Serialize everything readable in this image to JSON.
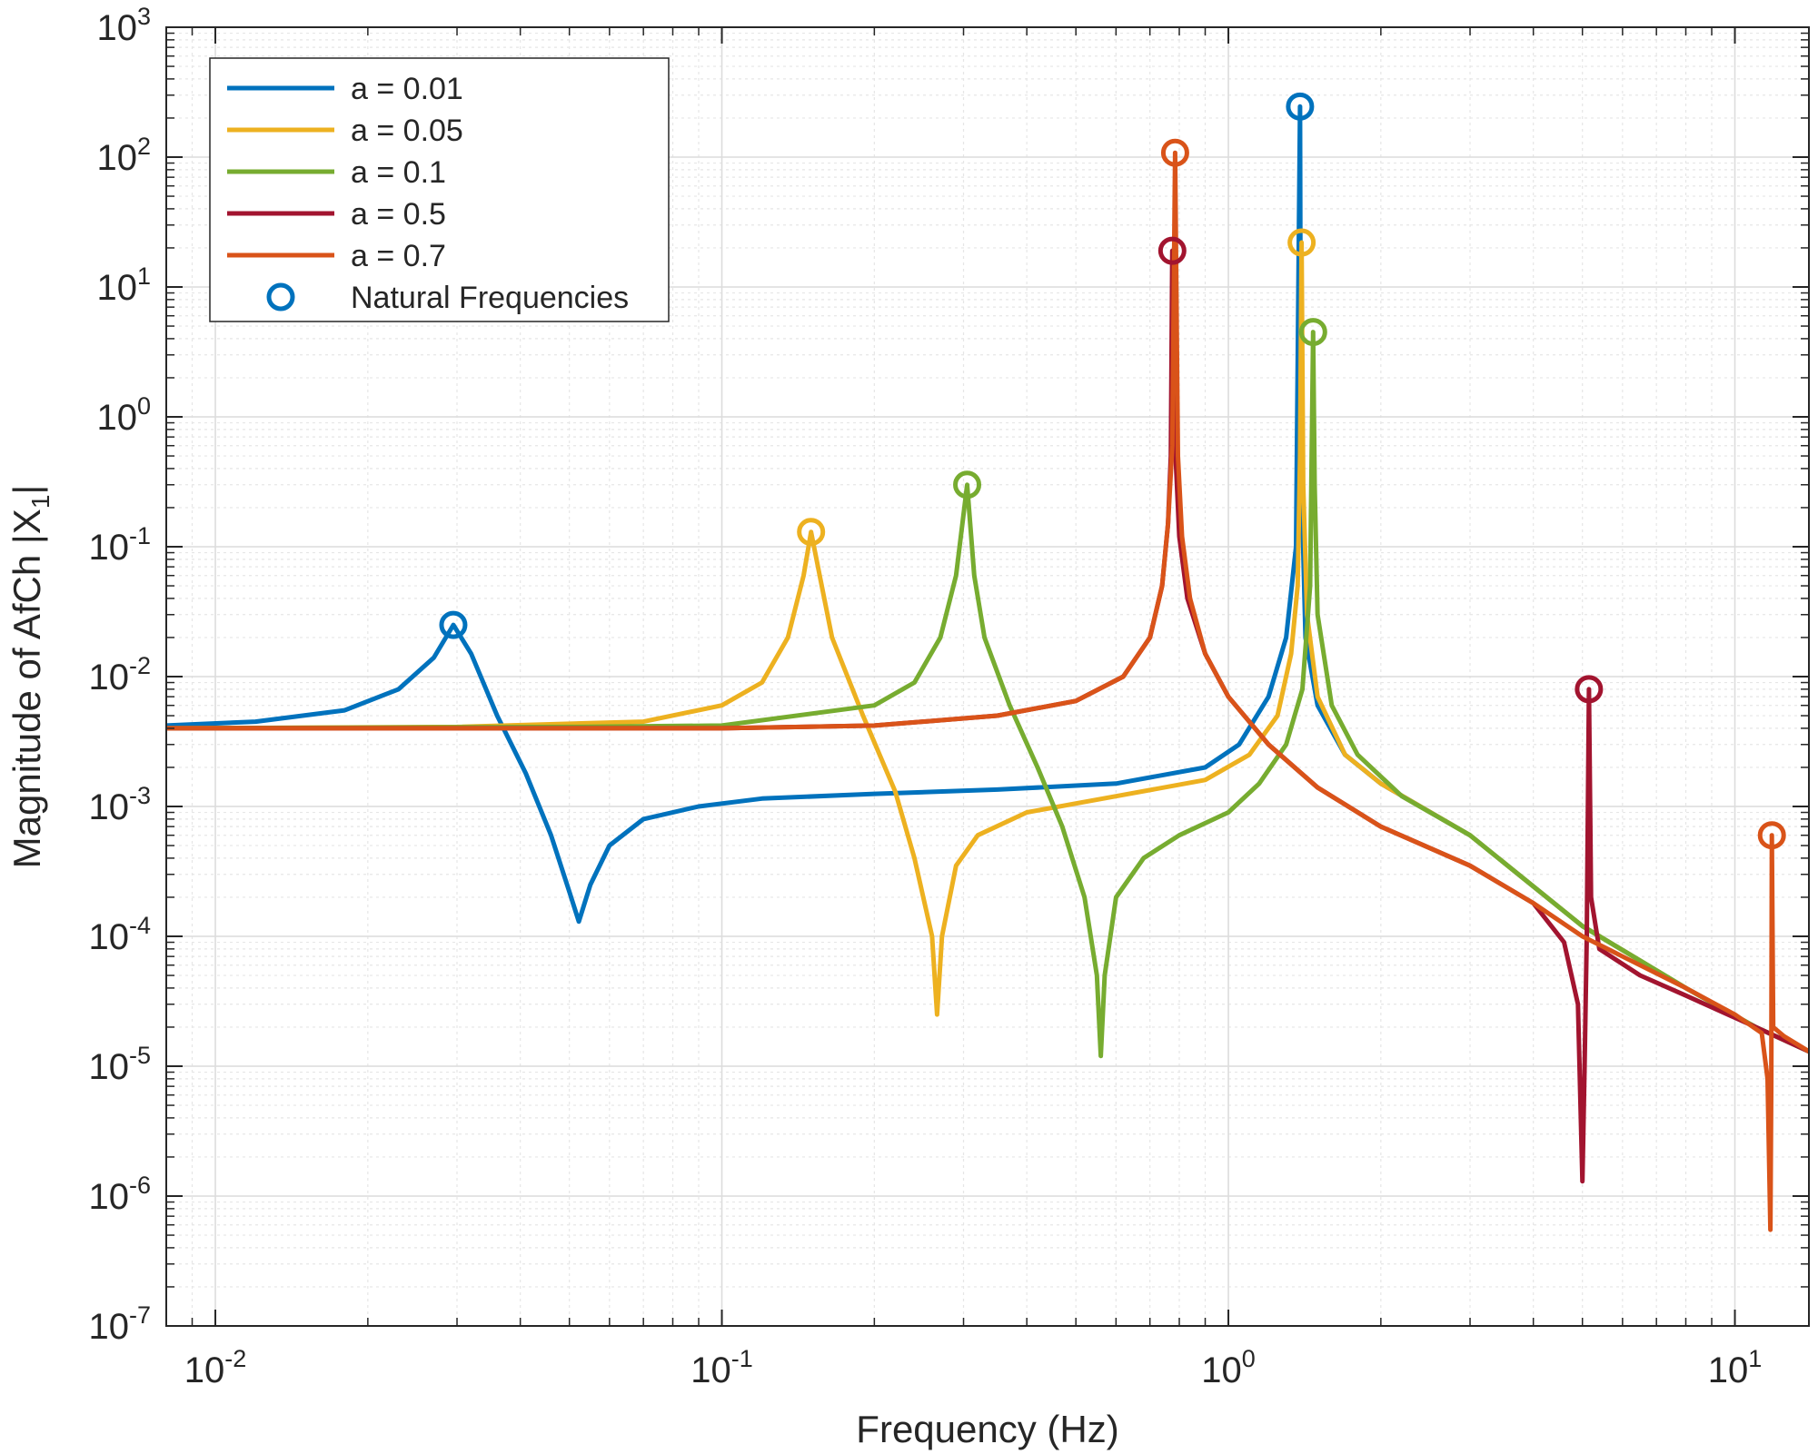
{
  "chart_data": {
    "type": "line",
    "xlabel": "Frequency (Hz)",
    "ylabel": "Magnitude of AfCh |X",
    "ylabel_subscript": "1",
    "ylabel_close": "|",
    "x_scale": "log",
    "y_scale": "log",
    "xlim": [
      0.008,
      14
    ],
    "ylim": [
      1e-07,
      1000
    ],
    "grid": true,
    "minor_grid": true,
    "legend_position": "top-left",
    "x_ticks": [
      {
        "base": "10",
        "exp": "-2",
        "value": 0.01
      },
      {
        "base": "10",
        "exp": "-1",
        "value": 0.1
      },
      {
        "base": "10",
        "exp": "0",
        "value": 1
      },
      {
        "base": "10",
        "exp": "1",
        "value": 10
      }
    ],
    "y_ticks": [
      {
        "base": "10",
        "exp": "3",
        "value": 1000
      },
      {
        "base": "10",
        "exp": "2",
        "value": 100
      },
      {
        "base": "10",
        "exp": "1",
        "value": 10
      },
      {
        "base": "10",
        "exp": "0",
        "value": 1
      },
      {
        "base": "10",
        "exp": "-1",
        "value": 0.1
      },
      {
        "base": "10",
        "exp": "-2",
        "value": 0.01
      },
      {
        "base": "10",
        "exp": "-3",
        "value": 0.001
      },
      {
        "base": "10",
        "exp": "-4",
        "value": 0.0001
      },
      {
        "base": "10",
        "exp": "-5",
        "value": 1e-05
      },
      {
        "base": "10",
        "exp": "-6",
        "value": 1e-06
      },
      {
        "base": "10",
        "exp": "-7",
        "value": 1e-07
      }
    ],
    "series": [
      {
        "name": "a = 0.01",
        "color": "#0072BD",
        "points": [
          [
            0.008,
            0.0042
          ],
          [
            0.012,
            0.0045
          ],
          [
            0.018,
            0.0055
          ],
          [
            0.023,
            0.008
          ],
          [
            0.027,
            0.014
          ],
          [
            0.0295,
            0.025
          ],
          [
            0.032,
            0.015
          ],
          [
            0.036,
            0.005
          ],
          [
            0.041,
            0.0018
          ],
          [
            0.046,
            0.0006
          ],
          [
            0.05,
            0.00022
          ],
          [
            0.0522,
            0.00013
          ],
          [
            0.055,
            0.00025
          ],
          [
            0.06,
            0.0005
          ],
          [
            0.07,
            0.0008
          ],
          [
            0.09,
            0.001
          ],
          [
            0.12,
            0.00115
          ],
          [
            0.2,
            0.00125
          ],
          [
            0.35,
            0.00135
          ],
          [
            0.6,
            0.0015
          ],
          [
            0.9,
            0.002
          ],
          [
            1.05,
            0.003
          ],
          [
            1.2,
            0.007
          ],
          [
            1.3,
            0.02
          ],
          [
            1.36,
            0.1
          ],
          [
            1.385,
            245
          ],
          [
            1.39,
            0.5
          ],
          [
            1.42,
            0.02
          ],
          [
            1.5,
            0.006
          ],
          [
            1.7,
            0.0025
          ],
          [
            2.0,
            0.0015
          ],
          [
            3.0,
            0.0006
          ],
          [
            5.0,
            0.00012
          ],
          [
            8.0,
            4e-05
          ],
          [
            11.0,
            2e-05
          ],
          [
            14.0,
            1.3e-05
          ]
        ]
      },
      {
        "name": "a = 0.05",
        "color": "#EDB120",
        "points": [
          [
            0.008,
            0.004
          ],
          [
            0.03,
            0.0041
          ],
          [
            0.07,
            0.0045
          ],
          [
            0.1,
            0.006
          ],
          [
            0.12,
            0.009
          ],
          [
            0.135,
            0.02
          ],
          [
            0.145,
            0.06
          ],
          [
            0.15,
            0.13
          ],
          [
            0.156,
            0.06
          ],
          [
            0.165,
            0.02
          ],
          [
            0.19,
            0.005
          ],
          [
            0.22,
            0.0013
          ],
          [
            0.24,
            0.0004
          ],
          [
            0.26,
            0.0001
          ],
          [
            0.266,
            2.5e-05
          ],
          [
            0.272,
            0.0001
          ],
          [
            0.29,
            0.00035
          ],
          [
            0.32,
            0.0006
          ],
          [
            0.4,
            0.0009
          ],
          [
            0.6,
            0.0012
          ],
          [
            0.9,
            0.0016
          ],
          [
            1.1,
            0.0025
          ],
          [
            1.25,
            0.005
          ],
          [
            1.33,
            0.015
          ],
          [
            1.37,
            0.05
          ],
          [
            1.385,
            0.5
          ],
          [
            1.395,
            22
          ],
          [
            1.405,
            0.3
          ],
          [
            1.43,
            0.03
          ],
          [
            1.5,
            0.007
          ],
          [
            1.7,
            0.0025
          ],
          [
            2.0,
            0.0015
          ],
          [
            3.0,
            0.0006
          ],
          [
            5.0,
            0.00012
          ],
          [
            8.0,
            4e-05
          ],
          [
            11.0,
            2e-05
          ],
          [
            14.0,
            1.3e-05
          ]
        ]
      },
      {
        "name": "a = 0.1",
        "color": "#77AC30",
        "points": [
          [
            0.008,
            0.004
          ],
          [
            0.05,
            0.0041
          ],
          [
            0.1,
            0.0042
          ],
          [
            0.2,
            0.006
          ],
          [
            0.24,
            0.009
          ],
          [
            0.27,
            0.02
          ],
          [
            0.29,
            0.06
          ],
          [
            0.305,
            0.3
          ],
          [
            0.315,
            0.06
          ],
          [
            0.33,
            0.02
          ],
          [
            0.37,
            0.006
          ],
          [
            0.42,
            0.002
          ],
          [
            0.47,
            0.0007
          ],
          [
            0.52,
            0.0002
          ],
          [
            0.55,
            5e-05
          ],
          [
            0.56,
            1.2e-05
          ],
          [
            0.57,
            5e-05
          ],
          [
            0.6,
            0.0002
          ],
          [
            0.68,
            0.0004
          ],
          [
            0.8,
            0.0006
          ],
          [
            1.0,
            0.0009
          ],
          [
            1.15,
            0.0015
          ],
          [
            1.3,
            0.003
          ],
          [
            1.4,
            0.008
          ],
          [
            1.45,
            0.05
          ],
          [
            1.47,
            4.5
          ],
          [
            1.48,
            0.3
          ],
          [
            1.5,
            0.03
          ],
          [
            1.6,
            0.006
          ],
          [
            1.8,
            0.0025
          ],
          [
            2.2,
            0.0012
          ],
          [
            3.0,
            0.0006
          ],
          [
            5.0,
            0.00012
          ],
          [
            8.0,
            4e-05
          ],
          [
            11.0,
            2e-05
          ],
          [
            14.0,
            1.3e-05
          ]
        ]
      },
      {
        "name": "a = 0.5",
        "color": "#A2142F",
        "points": [
          [
            0.008,
            0.004
          ],
          [
            0.1,
            0.004
          ],
          [
            0.2,
            0.0042
          ],
          [
            0.35,
            0.005
          ],
          [
            0.5,
            0.0065
          ],
          [
            0.62,
            0.01
          ],
          [
            0.7,
            0.02
          ],
          [
            0.74,
            0.05
          ],
          [
            0.76,
            0.15
          ],
          [
            0.77,
            0.5
          ],
          [
            0.775,
            19
          ],
          [
            0.785,
            0.6
          ],
          [
            0.8,
            0.12
          ],
          [
            0.83,
            0.04
          ],
          [
            0.9,
            0.015
          ],
          [
            1.0,
            0.007
          ],
          [
            1.2,
            0.003
          ],
          [
            1.5,
            0.0014
          ],
          [
            2.0,
            0.0007
          ],
          [
            3.0,
            0.00035
          ],
          [
            4.0,
            0.00018
          ],
          [
            4.6,
            9e-05
          ],
          [
            4.9,
            3e-05
          ],
          [
            5.0,
            1.3e-06
          ],
          [
            5.05,
            1e-05
          ],
          [
            5.1,
            0.0001
          ],
          [
            5.15,
            0.008
          ],
          [
            5.2,
            0.0002
          ],
          [
            5.4,
            8e-05
          ],
          [
            6.5,
            5e-05
          ],
          [
            8.0,
            3.5e-05
          ],
          [
            11.0,
            2e-05
          ],
          [
            14.0,
            1.3e-05
          ]
        ]
      },
      {
        "name": "a = 0.7",
        "color": "#D95319",
        "points": [
          [
            0.008,
            0.004
          ],
          [
            0.1,
            0.004
          ],
          [
            0.2,
            0.0042
          ],
          [
            0.35,
            0.005
          ],
          [
            0.5,
            0.0065
          ],
          [
            0.62,
            0.01
          ],
          [
            0.7,
            0.02
          ],
          [
            0.74,
            0.05
          ],
          [
            0.76,
            0.15
          ],
          [
            0.775,
            0.6
          ],
          [
            0.785,
            108
          ],
          [
            0.795,
            0.5
          ],
          [
            0.81,
            0.12
          ],
          [
            0.84,
            0.04
          ],
          [
            0.9,
            0.015
          ],
          [
            1.0,
            0.007
          ],
          [
            1.2,
            0.003
          ],
          [
            1.5,
            0.0014
          ],
          [
            2.0,
            0.0007
          ],
          [
            3.0,
            0.00035
          ],
          [
            4.0,
            0.00018
          ],
          [
            5.0,
            0.0001
          ],
          [
            6.0,
            7e-05
          ],
          [
            8.0,
            4e-05
          ],
          [
            10.0,
            2.5e-05
          ],
          [
            11.3,
            1.8e-05
          ],
          [
            11.6,
            8e-06
          ],
          [
            11.75,
            5.5e-07
          ],
          [
            11.8,
            8e-06
          ],
          [
            11.83,
            0.0006
          ],
          [
            11.9,
            2e-05
          ],
          [
            12.5,
            1.7e-05
          ],
          [
            14.0,
            1.3e-05
          ]
        ]
      }
    ],
    "markers_name": "Natural Frequencies",
    "markers_color": "#0072BD",
    "markers": [
      {
        "x": 0.0295,
        "y": 0.025,
        "color": "#0072BD"
      },
      {
        "x": 1.385,
        "y": 245,
        "color": "#0072BD"
      },
      {
        "x": 0.15,
        "y": 0.13,
        "color": "#EDB120"
      },
      {
        "x": 1.395,
        "y": 22,
        "color": "#EDB120"
      },
      {
        "x": 0.305,
        "y": 0.3,
        "color": "#77AC30"
      },
      {
        "x": 1.47,
        "y": 4.5,
        "color": "#77AC30"
      },
      {
        "x": 0.775,
        "y": 19,
        "color": "#A2142F"
      },
      {
        "x": 5.15,
        "y": 0.008,
        "color": "#A2142F"
      },
      {
        "x": 0.785,
        "y": 108,
        "color": "#D95319"
      },
      {
        "x": 11.83,
        "y": 0.0006,
        "color": "#D95319"
      }
    ]
  }
}
